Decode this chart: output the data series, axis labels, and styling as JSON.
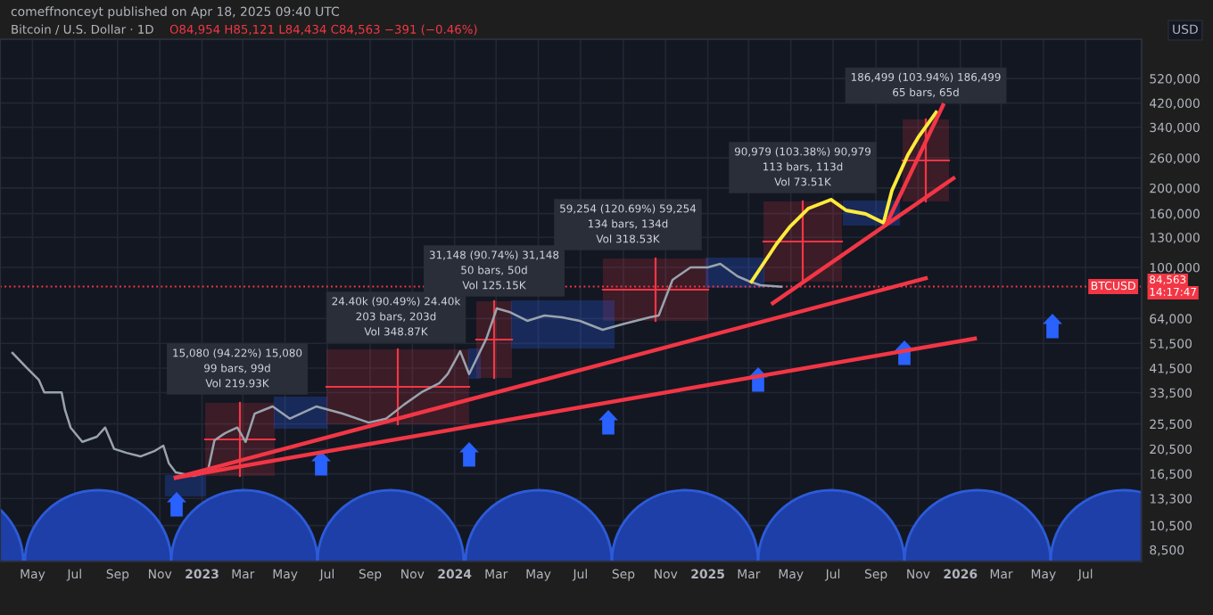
{
  "chart_data": {
    "type": "line",
    "title": "Bitcoin / U.S. Dollar · 1D",
    "subtitle": "O84,954 H85,121 L84,434 C84,563 −391 (−0.46%)",
    "ylabel": "USD",
    "log": true,
    "grid": true,
    "marker": "none",
    "line_style": "solid",
    "legend": false,
    "xlim": [
      "2022-03-15",
      "2026-09-20"
    ],
    "xticks": [
      {
        "value": "2022-05-01",
        "label": "May"
      },
      {
        "value": "2022-07-01",
        "label": "Jul"
      },
      {
        "value": "2022-09-01",
        "label": "Sep"
      },
      {
        "value": "2022-11-01",
        "label": "Nov"
      },
      {
        "value": "2023-01-01",
        "label": "2023"
      },
      {
        "value": "2023-03-01",
        "label": "Mar"
      },
      {
        "value": "2023-05-01",
        "label": "May"
      },
      {
        "value": "2023-07-01",
        "label": "Jul"
      },
      {
        "value": "2023-09-01",
        "label": "Sep"
      },
      {
        "value": "2023-11-01",
        "label": "Nov"
      },
      {
        "value": "2024-01-01",
        "label": "2024"
      },
      {
        "value": "2024-03-01",
        "label": "Mar"
      },
      {
        "value": "2024-05-01",
        "label": "May"
      },
      {
        "value": "2024-07-01",
        "label": "Jul"
      },
      {
        "value": "2024-09-01",
        "label": "Sep"
      },
      {
        "value": "2024-11-01",
        "label": "Nov"
      },
      {
        "value": "2025-01-01",
        "label": "2025"
      },
      {
        "value": "2025-03-01",
        "label": "Mar"
      },
      {
        "value": "2025-05-01",
        "label": "May"
      },
      {
        "value": "2025-07-01",
        "label": "Jul"
      },
      {
        "value": "2025-09-01",
        "label": "Sep"
      },
      {
        "value": "2025-11-01",
        "label": "Nov"
      },
      {
        "value": "2026-01-01",
        "label": "2026"
      },
      {
        "value": "2026-03-01",
        "label": "Mar"
      },
      {
        "value": "2026-05-01",
        "label": "May"
      },
      {
        "value": "2026-07-01",
        "label": "Jul"
      }
    ],
    "ylim": [
      7670,
      733000
    ],
    "yticks": [
      {
        "value": 8500,
        "label": "8,500"
      },
      {
        "value": 10500,
        "label": "10,500"
      },
      {
        "value": 13300,
        "label": "13,300"
      },
      {
        "value": 16500,
        "label": "16,500"
      },
      {
        "value": 20500,
        "label": "20,500"
      },
      {
        "value": 25500,
        "label": "25,500"
      },
      {
        "value": 33500,
        "label": "33,500"
      },
      {
        "value": 41500,
        "label": "41,500"
      },
      {
        "value": 51500,
        "label": "51,500"
      },
      {
        "value": 64000,
        "label": "64,000"
      },
      {
        "value": 100000,
        "label": "100,000"
      },
      {
        "value": 130000,
        "label": "130,000"
      },
      {
        "value": 160000,
        "label": "160,000"
      },
      {
        "value": 200000,
        "label": "200,000"
      },
      {
        "value": 260000,
        "label": "260,000"
      },
      {
        "value": 340000,
        "label": "340,000"
      },
      {
        "value": 420000,
        "label": "420,000"
      },
      {
        "value": 520000,
        "label": "520,000"
      }
    ],
    "series": [
      {
        "color": "#9aa3ad",
        "x": [
          "2022-04-02",
          "2022-04-22",
          "2022-05-10",
          "2022-05-18",
          "2022-05-30",
          "2022-06-12",
          "2022-06-17",
          "2022-06-25",
          "2022-07-12",
          "2022-08-02",
          "2022-08-14",
          "2022-08-27",
          "2022-09-14",
          "2022-10-04",
          "2022-10-24",
          "2022-11-06",
          "2022-11-14",
          "2022-11-24",
          "2022-12-19",
          "2023-01-09",
          "2023-01-19",
          "2023-02-03",
          "2023-02-21",
          "2023-03-05",
          "2023-03-18",
          "2023-03-31",
          "2023-04-13",
          "2023-05-08",
          "2023-06-15",
          "2023-07-23",
          "2023-08-30",
          "2023-09-24",
          "2023-10-20",
          "2023-11-14",
          "2023-12-10",
          "2023-12-22",
          "2024-01-09",
          "2024-01-22",
          "2024-02-16",
          "2024-03-02",
          "2024-03-20",
          "2024-04-15",
          "2024-05-10",
          "2024-06-04",
          "2024-06-30",
          "2024-08-02",
          "2024-09-01",
          "2024-10-09",
          "2024-10-22",
          "2024-11-11",
          "2024-12-07",
          "2025-01-01",
          "2025-01-19",
          "2025-02-13",
          "2025-03-03",
          "2025-03-18",
          "2025-04-17"
        ],
        "values": [
          47400,
          41800,
          37500,
          33600,
          33600,
          33600,
          28800,
          24700,
          21800,
          22800,
          24700,
          20500,
          19800,
          19200,
          20100,
          21100,
          18100,
          16700,
          16200,
          16700,
          22100,
          23500,
          24700,
          21800,
          27900,
          28800,
          29700,
          26700,
          29700,
          27900,
          25800,
          26700,
          30200,
          33600,
          36400,
          39400,
          48100,
          39400,
          53700,
          69900,
          67800,
          62700,
          65700,
          64700,
          62700,
          58000,
          61000,
          64700,
          65700,
          89700,
          100000,
          100000,
          103200,
          92500,
          88300,
          85600,
          84563
        ]
      },
      {
        "color": "#ffeb3b",
        "x": [
          "2025-03-05",
          "2025-04-10",
          "2025-04-30",
          "2025-05-26",
          "2025-06-28",
          "2025-07-20",
          "2025-08-17",
          "2025-09-12",
          "2025-09-24",
          "2025-10-17",
          "2025-11-01",
          "2025-11-27"
        ],
        "values": [
          88300,
          122400,
          143000,
          167100,
          180700,
          164500,
          159500,
          147500,
          195400,
          266600,
          311000,
          387000
        ]
      },
      {
        "type": "line",
        "color": "#f23645",
        "x": [
          "2022-11-24",
          "2025-11-12"
        ],
        "values": [
          15950,
          91000
        ]
      },
      {
        "type": "line",
        "color": "#f23645",
        "x": [
          "2022-11-24",
          "2026-01-22"
        ],
        "values": [
          15950,
          53700
        ]
      },
      {
        "type": "line",
        "color": "#f23645",
        "x": [
          "2025-04-05",
          "2025-12-22"
        ],
        "values": [
          73200,
          217700
        ]
      },
      {
        "type": "line",
        "color": "#f23645",
        "x": [
          "2025-09-17",
          "2025-12-07"
        ],
        "values": [
          147500,
          412000
        ]
      }
    ],
    "ref_lines": [
      {
        "axis": "y",
        "value": 84563,
        "label": "BTCUSD",
        "color": "#f23645",
        "line_style": "dotted"
      }
    ],
    "annotations": [
      "comeffnonceyt published on Apr 18, 2025 09:40 UTC",
      "84,563",
      "14:17:47",
      "15,080 (94.22%) 15,080\n99 bars, 99d\nVol 219.93K",
      "24.40k (90.49%) 24.40k\n203 bars, 203d\nVol 348.87K",
      "31,148 (90.74%) 31,148\n50 bars, 50d\nVol 125.15K",
      "59,254 (120.69%) 59,254\n134 bars, 134d\nVol 318.53K",
      "90,979 (103.38%) 90,979\n113 bars, 113d\nVol 73.51K",
      "186,499 (103.94%) 186,499\n65 bars, 65d"
    ]
  }
}
